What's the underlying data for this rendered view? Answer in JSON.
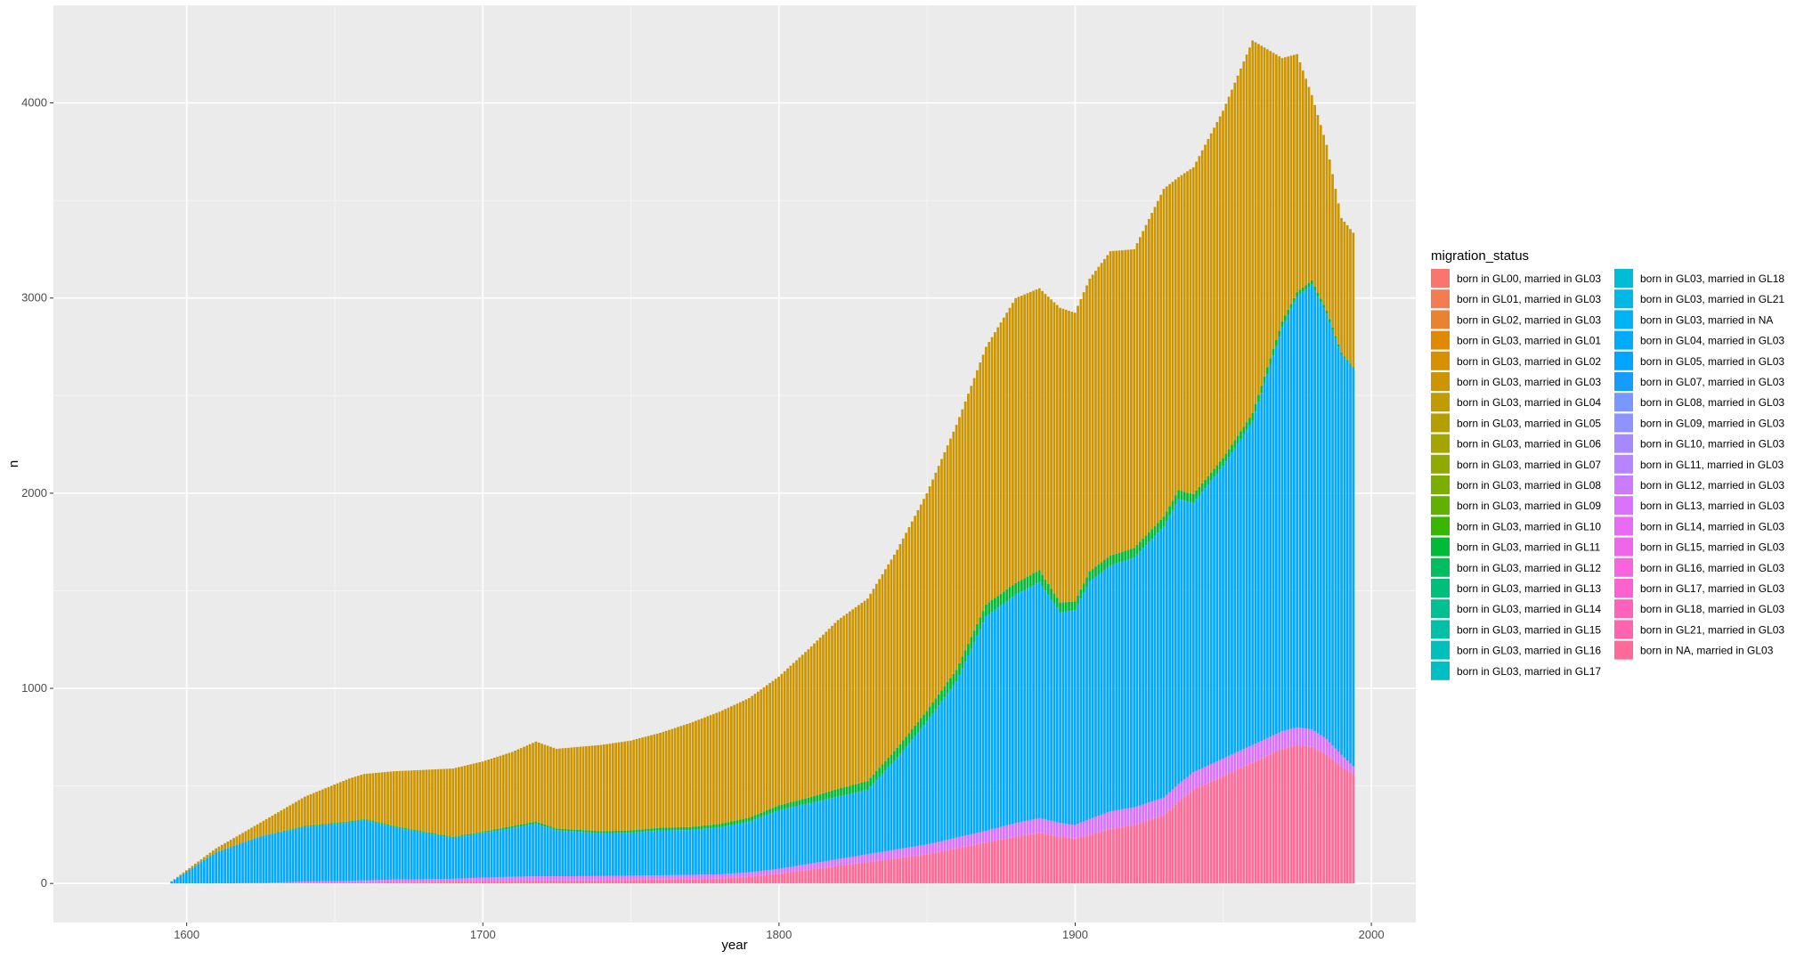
{
  "chart_data": {
    "type": "bar",
    "stacked": true,
    "xlabel": "year",
    "ylabel": "n",
    "xlim": [
      1555,
      2015
    ],
    "ylim": [
      -200,
      4500
    ],
    "x_ticks": [
      1600,
      1700,
      1800,
      1900,
      2000
    ],
    "y_ticks": [
      0,
      1000,
      2000,
      3000,
      4000
    ],
    "grid": true,
    "background": "#EBEBEB",
    "legend": {
      "title": "migration_status",
      "placement": "right",
      "columns": 2,
      "entries": [
        "born in GL00, married in GL03",
        "born in GL01, married in GL03",
        "born in GL02, married in GL03",
        "born in GL03, married in GL01",
        "born in GL03, married in GL02",
        "born in GL03, married in GL03",
        "born in GL03, married in GL04",
        "born in GL03, married in GL05",
        "born in GL03, married in GL06",
        "born in GL03, married in GL07",
        "born in GL03, married in GL08",
        "born in GL03, married in GL09",
        "born in GL03, married in GL10",
        "born in GL03, married in GL11",
        "born in GL03, married in GL12",
        "born in GL03, married in GL13",
        "born in GL03, married in GL14",
        "born in GL03, married in GL15",
        "born in GL03, married in GL16",
        "born in GL03, married in GL17",
        "born in GL03, married in GL18",
        "born in GL03, married in GL21",
        "born in GL03, married in NA",
        "born in GL04, married in GL03",
        "born in GL05, married in GL03",
        "born in GL07, married in GL03",
        "born in GL08, married in GL03",
        "born in GL09, married in GL03",
        "born in GL10, married in GL03",
        "born in GL11, married in GL03",
        "born in GL12, married in GL03",
        "born in GL13, married in GL03",
        "born in GL14, married in GL03",
        "born in GL15, married in GL03",
        "born in GL16, married in GL03",
        "born in GL17, married in GL03",
        "born in GL18, married in GL03",
        "born in GL21, married in GL03",
        "born in NA, married in GL03"
      ],
      "colors": [
        "#F8766D",
        "#F27D53",
        "#EA8331",
        "#E18A00",
        "#D89000",
        "#CD9600",
        "#C19C00",
        "#B3A000",
        "#A3A500",
        "#91AA00",
        "#7CAE00",
        "#61B200",
        "#39B600",
        "#00BA38",
        "#00BD5F",
        "#00BF7A",
        "#00C091",
        "#00C1A7",
        "#00C0B9",
        "#00BFC4",
        "#00BCD6",
        "#00B8E5",
        "#00B3F2",
        "#00ABFD",
        "#00A5FF",
        "#149CFF",
        "#7997FF",
        "#8F92FF",
        "#A58AFF",
        "#B983FF",
        "#CB7BFF",
        "#DB72FB",
        "#E76BF3",
        "#F066EA",
        "#F864DD",
        "#FC61CF",
        "#FF62BC",
        "#FF65AE",
        "#FF6A98"
      ]
    },
    "bar_series_note_colors": {
      "GL03_GL03": "#CD9600",
      "GL04_GL03": "#00ABFD",
      "green_band": "#00BA38",
      "violet_band": "#DB72FB",
      "NA_GL03": "#FF6A98"
    },
    "x": [
      1594,
      1610,
      1625,
      1640,
      1655,
      1660,
      1670,
      1690,
      1700,
      1710,
      1718,
      1725,
      1740,
      1750,
      1760,
      1770,
      1780,
      1790,
      1800,
      1810,
      1820,
      1830,
      1840,
      1850,
      1860,
      1870,
      1880,
      1888,
      1895,
      1900,
      1905,
      1912,
      1920,
      1930,
      1935,
      1940,
      1950,
      1960,
      1970,
      1975,
      1980,
      1985,
      1990,
      1994
    ],
    "series": [
      {
        "name": "born in NA, married in GL03",
        "values": [
          0,
          0,
          0,
          5,
          5,
          6,
          8,
          10,
          12,
          14,
          15,
          15,
          16,
          18,
          20,
          22,
          25,
          35,
          50,
          70,
          90,
          110,
          130,
          150,
          180,
          210,
          240,
          260,
          240,
          230,
          250,
          280,
          300,
          350,
          420,
          480,
          550,
          620,
          690,
          710,
          700,
          660,
          600,
          560
        ]
      },
      {
        "name": "violet band (born in GL1x, married in GL03)",
        "values": [
          0,
          0,
          2,
          5,
          8,
          10,
          12,
          14,
          18,
          20,
          22,
          22,
          22,
          22,
          22,
          22,
          22,
          22,
          25,
          30,
          35,
          40,
          45,
          50,
          55,
          60,
          70,
          75,
          70,
          70,
          80,
          90,
          90,
          90,
          90,
          90,
          90,
          90,
          90,
          90,
          90,
          80,
          60,
          40
        ]
      },
      {
        "name": "born in GL04, married in GL03",
        "values": [
          0,
          160,
          240,
          280,
          300,
          310,
          270,
          210,
          230,
          250,
          270,
          235,
          220,
          220,
          230,
          230,
          240,
          260,
          300,
          310,
          320,
          330,
          470,
          630,
          800,
          1100,
          1170,
          1210,
          1080,
          1100,
          1220,
          1260,
          1280,
          1390,
          1460,
          1380,
          1500,
          1660,
          2070,
          2210,
          2280,
          2180,
          2050,
          2040
        ]
      },
      {
        "name": "green band (born in GL03, married in GL1x)",
        "values": [
          0,
          0,
          0,
          5,
          5,
          5,
          5,
          5,
          5,
          10,
          10,
          10,
          10,
          12,
          14,
          15,
          18,
          20,
          25,
          30,
          40,
          45,
          50,
          55,
          60,
          60,
          60,
          60,
          50,
          45,
          50,
          50,
          50,
          50,
          45,
          45,
          40,
          40,
          30,
          20,
          20,
          15,
          10,
          5
        ]
      },
      {
        "name": "born in GL03, married in GL03",
        "values": [
          0,
          20,
          70,
          150,
          220,
          230,
          280,
          350,
          360,
          380,
          410,
          408,
          442,
          460,
          486,
          533,
          575,
          613,
          660,
          760,
          865,
          935,
          1015,
          1115,
          1255,
          1320,
          1460,
          1445,
          1510,
          1480,
          1500,
          1560,
          1530,
          1680,
          1605,
          1675,
          1780,
          1910,
          1350,
          1220,
          950,
          850,
          690,
          690
        ]
      }
    ]
  }
}
